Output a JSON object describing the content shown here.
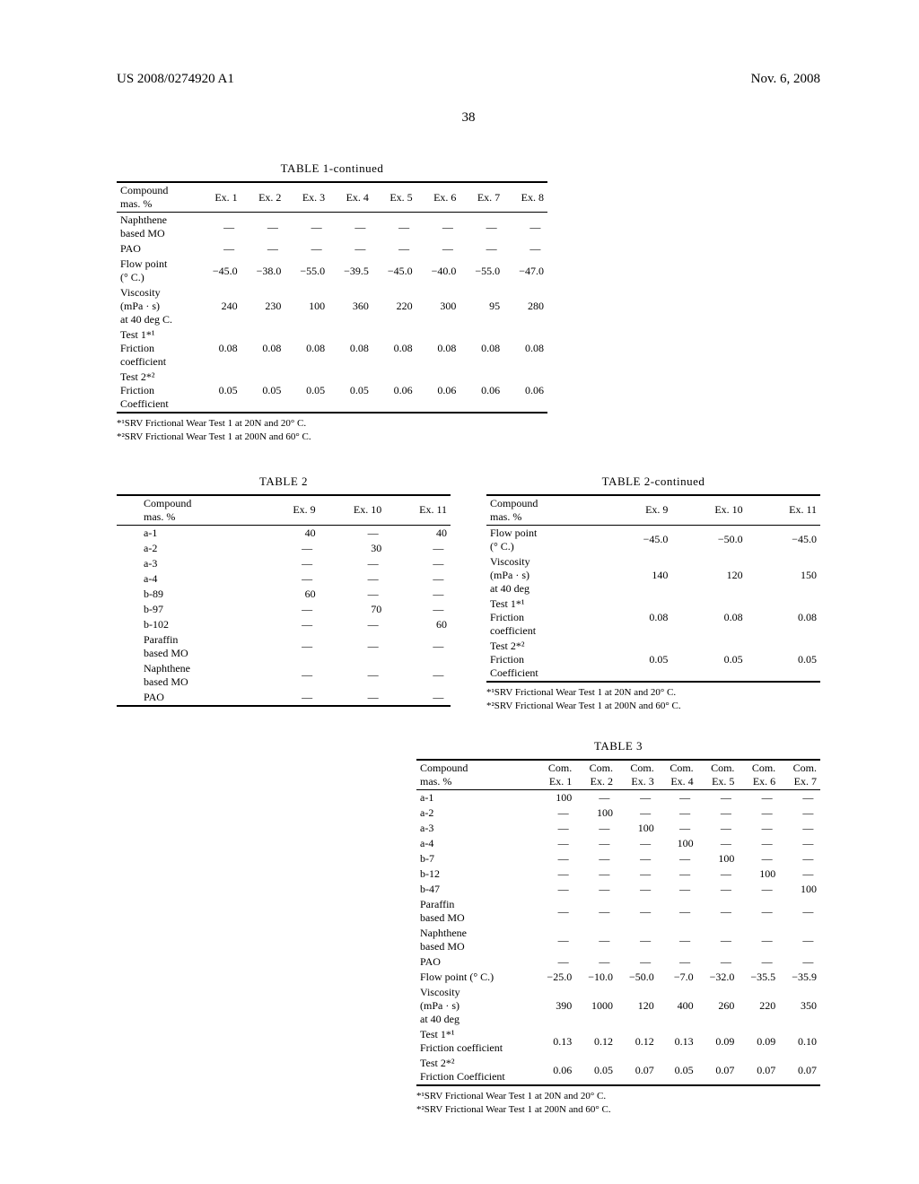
{
  "header": {
    "left": "US 2008/0274920 A1",
    "right": "Nov. 6, 2008"
  },
  "page_number": "38",
  "footnotes": {
    "f1": "*¹SRV Frictional Wear Test 1 at 20N and 20° C.",
    "f2": "*²SRV Frictional Wear Test 1 at 200N and 60° C."
  },
  "table1": {
    "title": "TABLE 1-continued",
    "col_header": "Compound\nmas. %",
    "columns": [
      "Ex. 1",
      "Ex. 2",
      "Ex. 3",
      "Ex. 4",
      "Ex. 5",
      "Ex. 6",
      "Ex. 7",
      "Ex. 8"
    ],
    "rows": [
      {
        "label": "Naphthene\nbased MO",
        "vals": [
          "—",
          "—",
          "—",
          "—",
          "—",
          "—",
          "—",
          "—"
        ]
      },
      {
        "label": "PAO",
        "vals": [
          "—",
          "—",
          "—",
          "—",
          "—",
          "—",
          "—",
          "—"
        ]
      },
      {
        "label": "Flow point\n(° C.)",
        "vals": [
          "−45.0",
          "−38.0",
          "−55.0",
          "−39.5",
          "−45.0",
          "−40.0",
          "−55.0",
          "−47.0"
        ]
      },
      {
        "label": "Viscosity\n(mPa · s)\nat 40 deg C.",
        "vals": [
          "240",
          "230",
          "100",
          "360",
          "220",
          "300",
          "95",
          "280"
        ]
      },
      {
        "label": "Test 1*¹\nFriction\ncoefficient",
        "vals": [
          "0.08",
          "0.08",
          "0.08",
          "0.08",
          "0.08",
          "0.08",
          "0.08",
          "0.08"
        ]
      },
      {
        "label": "Test 2*²\nFriction\nCoefficient",
        "vals": [
          "0.05",
          "0.05",
          "0.05",
          "0.05",
          "0.06",
          "0.06",
          "0.06",
          "0.06"
        ]
      }
    ]
  },
  "table2a": {
    "title": "TABLE 2",
    "col_header": "Compound\nmas. %",
    "columns": [
      "Ex. 9",
      "Ex. 10",
      "Ex. 11"
    ],
    "rows": [
      {
        "label": "a-1",
        "vals": [
          "40",
          "—",
          "40"
        ]
      },
      {
        "label": "a-2",
        "vals": [
          "—",
          "30",
          "—"
        ]
      },
      {
        "label": "a-3",
        "vals": [
          "—",
          "—",
          "—"
        ]
      },
      {
        "label": "a-4",
        "vals": [
          "—",
          "—",
          "—"
        ]
      },
      {
        "label": "b-89",
        "vals": [
          "60",
          "—",
          "—"
        ]
      },
      {
        "label": "b-97",
        "vals": [
          "—",
          "70",
          "—"
        ]
      },
      {
        "label": "b-102",
        "vals": [
          "—",
          "—",
          "60"
        ]
      },
      {
        "label": "Paraffin\nbased MO",
        "vals": [
          "—",
          "—",
          "—"
        ]
      },
      {
        "label": "Naphthene\nbased MO",
        "vals": [
          "—",
          "—",
          "—"
        ]
      },
      {
        "label": "PAO",
        "vals": [
          "—",
          "—",
          "—"
        ]
      }
    ]
  },
  "table2b": {
    "title": "TABLE 2-continued",
    "col_header": "Compound\nmas. %",
    "columns": [
      "Ex. 9",
      "Ex. 10",
      "Ex. 11"
    ],
    "rows": [
      {
        "label": "Flow point\n(° C.)",
        "vals": [
          "−45.0",
          "−50.0",
          "−45.0"
        ]
      },
      {
        "label": "Viscosity\n(mPa · s)\nat 40 deg",
        "vals": [
          "140",
          "120",
          "150"
        ]
      },
      {
        "label": "Test 1*¹\nFriction\ncoefficient",
        "vals": [
          "0.08",
          "0.08",
          "0.08"
        ]
      },
      {
        "label": "Test 2*²\nFriction\nCoefficient",
        "vals": [
          "0.05",
          "0.05",
          "0.05"
        ]
      }
    ]
  },
  "table3": {
    "title": "TABLE 3",
    "col_header": "Compound\nmas. %",
    "columns": [
      "Com.\nEx. 1",
      "Com.\nEx. 2",
      "Com.\nEx. 3",
      "Com.\nEx. 4",
      "Com.\nEx. 5",
      "Com.\nEx. 6",
      "Com.\nEx. 7"
    ],
    "rows": [
      {
        "label": "a-1",
        "vals": [
          "100",
          "—",
          "—",
          "—",
          "—",
          "—",
          "—"
        ]
      },
      {
        "label": "a-2",
        "vals": [
          "—",
          "100",
          "—",
          "—",
          "—",
          "—",
          "—"
        ]
      },
      {
        "label": "a-3",
        "vals": [
          "—",
          "—",
          "100",
          "—",
          "—",
          "—",
          "—"
        ]
      },
      {
        "label": "a-4",
        "vals": [
          "—",
          "—",
          "—",
          "100",
          "—",
          "—",
          "—"
        ]
      },
      {
        "label": "b-7",
        "vals": [
          "—",
          "—",
          "—",
          "—",
          "100",
          "—",
          "—"
        ]
      },
      {
        "label": "b-12",
        "vals": [
          "—",
          "—",
          "—",
          "—",
          "—",
          "100",
          "—"
        ]
      },
      {
        "label": "b-47",
        "vals": [
          "—",
          "—",
          "—",
          "—",
          "—",
          "—",
          "100"
        ]
      },
      {
        "label": "Paraffin\nbased MO",
        "vals": [
          "—",
          "—",
          "—",
          "—",
          "—",
          "—",
          "—"
        ]
      },
      {
        "label": "Naphthene\nbased MO",
        "vals": [
          "—",
          "—",
          "—",
          "—",
          "—",
          "—",
          "—"
        ]
      },
      {
        "label": "PAO",
        "vals": [
          "—",
          "—",
          "—",
          "—",
          "—",
          "—",
          "—"
        ]
      },
      {
        "label": "Flow point (° C.)",
        "vals": [
          "−25.0",
          "−10.0",
          "−50.0",
          "−7.0",
          "−32.0",
          "−35.5",
          "−35.9"
        ]
      },
      {
        "label": "Viscosity\n(mPa · s)\nat 40 deg",
        "vals": [
          "390",
          "1000",
          "120",
          "400",
          "260",
          "220",
          "350"
        ]
      },
      {
        "label": "Test 1*¹\nFriction coefficient",
        "vals": [
          "0.13",
          "0.12",
          "0.12",
          "0.13",
          "0.09",
          "0.09",
          "0.10"
        ]
      },
      {
        "label": "Test 2*²\nFriction Coefficient",
        "vals": [
          "0.06",
          "0.05",
          "0.07",
          "0.05",
          "0.07",
          "0.07",
          "0.07"
        ]
      }
    ]
  }
}
